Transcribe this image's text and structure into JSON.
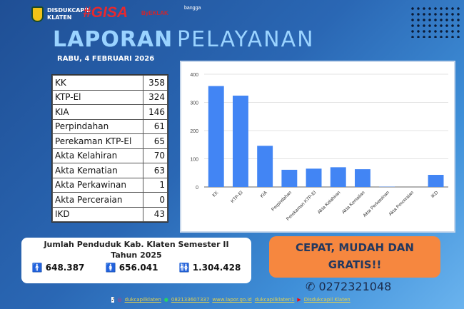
{
  "header": {
    "org_line1": "DISDUKCAPIL",
    "org_line2": "KLATEN",
    "logo_gisa": "#GISA",
    "logo_eklak": "ByEKLAK",
    "logo_bangga": "bangga"
  },
  "title": {
    "word1": "LAPORAN",
    "word2": "PELAYANAN",
    "date": "RABU, 4 FEBRUARI 2026"
  },
  "table": [
    [
      "KK",
      "358"
    ],
    [
      "KTP-El",
      "324"
    ],
    [
      "KIA",
      "146"
    ],
    [
      "Perpindahan",
      "61"
    ],
    [
      "Perekaman KTP-El",
      "65"
    ],
    [
      "Akta Kelahiran",
      "70"
    ],
    [
      "Akta Kematian",
      "63"
    ],
    [
      "Akta Perkawinan",
      "1"
    ],
    [
      "Akta Perceraian",
      "0"
    ],
    [
      "IKD",
      "43"
    ]
  ],
  "chart_data": {
    "type": "bar",
    "categories": [
      "KK",
      "KTP-El",
      "KIA",
      "Perpindahan",
      "Perekaman KTP-El",
      "Akta Kelahiran",
      "Akta Kematian",
      "Akta Perkawinan",
      "Akta Perceraian",
      "IKD"
    ],
    "values": [
      358,
      324,
      146,
      61,
      65,
      70,
      63,
      1,
      0,
      43
    ],
    "ylim": [
      0,
      400
    ],
    "yticks": [
      0,
      100,
      200,
      300,
      400
    ],
    "grid": true,
    "color": "#4285f4"
  },
  "population": {
    "title_line1": "Jumlah Penduduk Kab. Klaten Semester II",
    "title_line2": "Tahun 2025",
    "male": "648.387",
    "female": "656.041",
    "total": "1.304.428"
  },
  "slogan": {
    "line1": "CEPAT, MUDAH DAN",
    "line2": "GRATIS!!"
  },
  "phone": "0272321048",
  "footer": {
    "instagram": "dukcapilklaten",
    "whatsapp": "082133607337",
    "lapor": "www.lapor.go.id",
    "tiktok": "dukcapilklaten1",
    "youtube": "Disdukcapil Klaten"
  }
}
